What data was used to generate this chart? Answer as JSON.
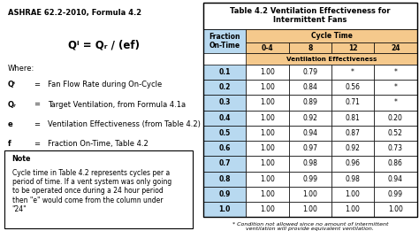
{
  "title_line1": "Table 4.2 Ventilation Effectiveness for",
  "title_line2": "Intermittent Fans",
  "fractions": [
    "0.1",
    "0.2",
    "0.3",
    "0.4",
    "0.5",
    "0.6",
    "0.7",
    "0.8",
    "0.9",
    "1.0"
  ],
  "data": [
    [
      "1.00",
      "0.79",
      "*",
      "*"
    ],
    [
      "1.00",
      "0.84",
      "0.56",
      "*"
    ],
    [
      "1.00",
      "0.89",
      "0.71",
      "*"
    ],
    [
      "1.00",
      "0.92",
      "0.81",
      "0.20"
    ],
    [
      "1.00",
      "0.94",
      "0.87",
      "0.52"
    ],
    [
      "1.00",
      "0.97",
      "0.92",
      "0.73"
    ],
    [
      "1.00",
      "0.98",
      "0.96",
      "0.86"
    ],
    [
      "1.00",
      "0.99",
      "0.98",
      "0.94"
    ],
    [
      "1.00",
      "1.00",
      "1.00",
      "0.99"
    ],
    [
      "1.00",
      "1.00",
      "1.00",
      "1.00"
    ]
  ],
  "footnote": "* Condition not allowed since no amount of intermittent\nventilation will provide equivalent ventilation.",
  "ashrae_title": "ASHRAE 62.2-2010, Formula 4.2",
  "formula": "Qⁱ = Qᵣ / (ef)",
  "where_label": "Where:",
  "where_lines": [
    [
      "Qⁱ",
      "=",
      "Fan Flow Rate during On-Cycle"
    ],
    [
      "Qᵣ",
      "=",
      "Target Ventilation, from Formula 4.1a"
    ],
    [
      "e",
      "=",
      "Ventilation Effectiveness (from Table 4.2)"
    ],
    [
      "f",
      "=",
      "Fraction On-Time, Table 4.2"
    ]
  ],
  "note_title": "Note",
  "note_text": "Cycle time in Table 4.2 represents cycles per a\nperiod of time. If a vent system was only going\nto be operated once during a 24 hour period\nthen \"e\" would come from the column under\n\"24\"",
  "color_header_bg": "#F5C98C",
  "color_fraction_bg": "#B8D9F0",
  "color_data_bg": "#FFFFFF",
  "color_border": "#000000",
  "bg_color": "#FFFFFF",
  "cycle_labels": [
    "0-4",
    "8",
    "12",
    "24"
  ]
}
